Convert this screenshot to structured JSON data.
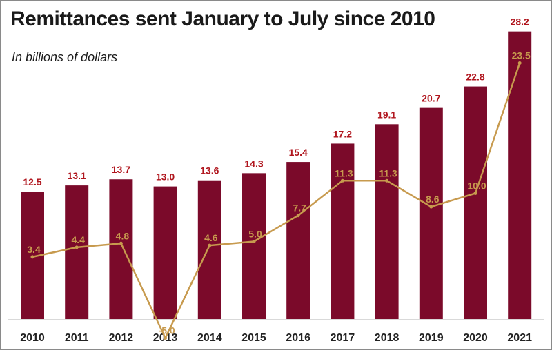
{
  "title": "Remittances sent January to July since 2010",
  "subtitle": "In billions of dollars",
  "colors": {
    "bar": "#7b0a2a",
    "bar_label": "#b0151d",
    "line": "#c79a4e",
    "axis": "#d9d9d9",
    "tick_text": "#222222"
  },
  "chart_data": {
    "type": "bar",
    "categories": [
      "2010",
      "2011",
      "2012",
      "2013",
      "2014",
      "2015",
      "2016",
      "2017",
      "2018",
      "2019",
      "2020",
      "2021"
    ],
    "series": [
      {
        "type": "bar",
        "values": [
          12.5,
          13.1,
          13.7,
          13.0,
          13.6,
          14.3,
          15.4,
          17.2,
          19.1,
          20.7,
          22.8,
          28.2
        ],
        "labels": [
          "12.5",
          "13.1",
          "13.7",
          "13.0",
          "13.6",
          "14.3",
          "15.4",
          "17.2",
          "19.1",
          "20.7",
          "22.8",
          "28.2"
        ]
      },
      {
        "type": "line",
        "values": [
          3.4,
          4.4,
          4.8,
          -5.0,
          4.6,
          5.0,
          7.7,
          11.3,
          11.3,
          8.6,
          10.0,
          23.5
        ],
        "labels": [
          "3.4",
          "4.4",
          "4.8",
          "-5.0",
          "4.6",
          "5.0",
          "7.7",
          "11.3",
          "11.3",
          "8.6",
          "10.0",
          "23.5"
        ]
      }
    ],
    "grid": false,
    "legend": "none"
  }
}
